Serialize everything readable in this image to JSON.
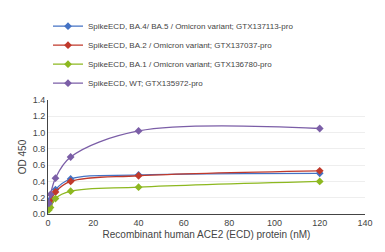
{
  "chart_data": {
    "type": "line",
    "xlabel": "Recombinant human ACE2 (ECD) protein (nM)",
    "ylabel": "OD 450",
    "x": [
      0.37,
      1.1,
      3.3,
      10,
      40,
      120
    ],
    "xlim": [
      0,
      140
    ],
    "ylim": [
      0,
      1.4
    ],
    "xticks": [
      0,
      20,
      40,
      60,
      80,
      100,
      120,
      140
    ],
    "yticks": [
      {
        "value": 0,
        "label": "0.0"
      },
      0.2,
      0.4,
      0.6,
      0.8,
      {
        "value": 1,
        "label": "1.0"
      },
      1.2,
      1.4
    ],
    "marker": "diamond",
    "grid": "y",
    "legend": "upper left",
    "series": [
      {
        "name": "SpikeECD, BA.4/ BA.5 / Omicron variant; GTX137113-pro",
        "color": "#4472c4",
        "values": [
          0.12,
          0.18,
          0.3,
          0.43,
          0.48,
          0.5
        ]
      },
      {
        "name": "SpikeECD, BA.2 / Omicron variant; GTX137037-pro",
        "color": "#c0392b",
        "values": [
          0.1,
          0.15,
          0.27,
          0.4,
          0.47,
          0.53
        ]
      },
      {
        "name": "SpikeECD, BA.1 / Omicron variant; GTX136780-pro",
        "color": "#8db820",
        "values": [
          0.05,
          0.08,
          0.19,
          0.28,
          0.33,
          0.4
        ]
      },
      {
        "name": "SpikeECD, WT; GTX135972-pro",
        "color": "#7b5ea7",
        "values": [
          0.13,
          0.24,
          0.44,
          0.7,
          1.02,
          1.05
        ]
      }
    ]
  }
}
